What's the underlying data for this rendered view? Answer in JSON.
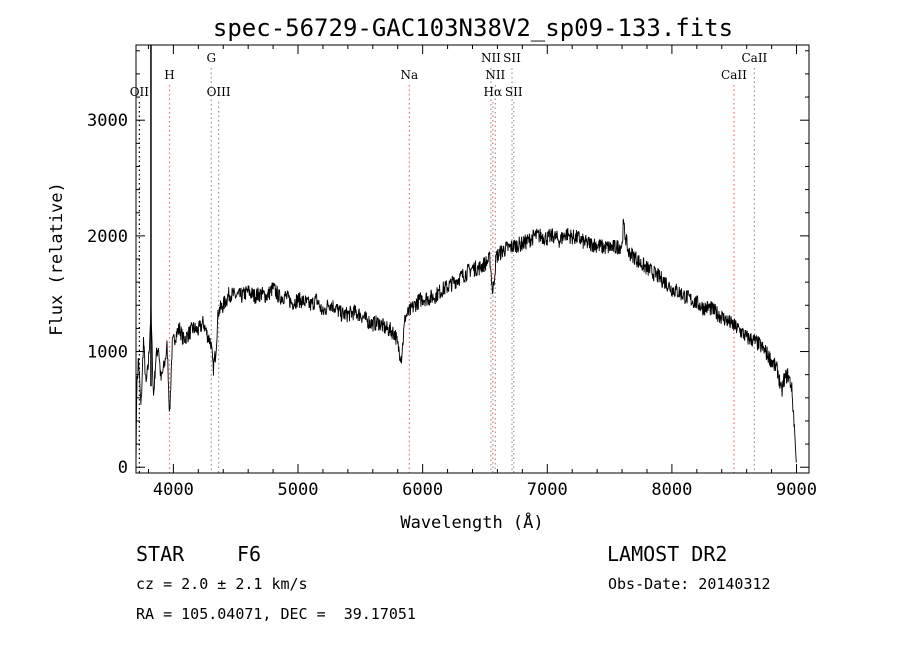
{
  "chart_data": {
    "type": "line",
    "title": "spec-56729-GAC103N38V2_sp09-133.fits",
    "xlabel": "Wavelength (Å)",
    "ylabel": "Flux (relative)",
    "xlim": [
      3700,
      9100
    ],
    "ylim": [
      -50,
      3650
    ],
    "xticks": [
      4000,
      5000,
      6000,
      7000,
      8000,
      9000
    ],
    "yticks": [
      0,
      1000,
      2000,
      3000
    ],
    "xtick_labels": [
      "4000",
      "5000",
      "6000",
      "7000",
      "8000",
      "9000"
    ],
    "ytick_labels": [
      "0",
      "1000",
      "2000",
      "3000"
    ],
    "grid": false,
    "spectrum_nodes": [
      [
        3700,
        0
      ],
      [
        3705,
        650
      ],
      [
        3720,
        950
      ],
      [
        3740,
        500
      ],
      [
        3760,
        1100
      ],
      [
        3780,
        700
      ],
      [
        3800,
        900
      ],
      [
        3820,
        1350
      ],
      [
        3840,
        600
      ],
      [
        3860,
        950
      ],
      [
        3880,
        1050
      ],
      [
        3900,
        750
      ],
      [
        3930,
        900
      ],
      [
        3950,
        1050
      ],
      [
        3970,
        450
      ],
      [
        3990,
        1050
      ],
      [
        4020,
        1150
      ],
      [
        4050,
        1200
      ],
      [
        4080,
        1100
      ],
      [
        4120,
        1150
      ],
      [
        4160,
        1200
      ],
      [
        4200,
        1180
      ],
      [
        4240,
        1250
      ],
      [
        4270,
        1150
      ],
      [
        4300,
        1080
      ],
      [
        4320,
        850
      ],
      [
        4340,
        1000
      ],
      [
        4360,
        1350
      ],
      [
        4400,
        1400
      ],
      [
        4450,
        1500
      ],
      [
        4500,
        1480
      ],
      [
        4550,
        1480
      ],
      [
        4600,
        1520
      ],
      [
        4650,
        1480
      ],
      [
        4700,
        1500
      ],
      [
        4750,
        1480
      ],
      [
        4800,
        1550
      ],
      [
        4850,
        1470
      ],
      [
        4900,
        1480
      ],
      [
        4950,
        1420
      ],
      [
        5000,
        1450
      ],
      [
        5050,
        1430
      ],
      [
        5100,
        1400
      ],
      [
        5150,
        1450
      ],
      [
        5200,
        1330
      ],
      [
        5250,
        1420
      ],
      [
        5300,
        1380
      ],
      [
        5350,
        1320
      ],
      [
        5400,
        1320
      ],
      [
        5450,
        1340
      ],
      [
        5500,
        1320
      ],
      [
        5550,
        1270
      ],
      [
        5600,
        1240
      ],
      [
        5650,
        1250
      ],
      [
        5700,
        1200
      ],
      [
        5750,
        1180
      ],
      [
        5780,
        1150
      ],
      [
        5800,
        1050
      ],
      [
        5830,
        950
      ],
      [
        5860,
        1300
      ],
      [
        5900,
        1350
      ],
      [
        5950,
        1420
      ],
      [
        6000,
        1460
      ],
      [
        6050,
        1460
      ],
      [
        6100,
        1480
      ],
      [
        6150,
        1530
      ],
      [
        6200,
        1560
      ],
      [
        6250,
        1600
      ],
      [
        6300,
        1640
      ],
      [
        6350,
        1680
      ],
      [
        6400,
        1720
      ],
      [
        6450,
        1720
      ],
      [
        6500,
        1760
      ],
      [
        6540,
        1800
      ],
      [
        6563,
        1500
      ],
      [
        6590,
        1820
      ],
      [
        6650,
        1880
      ],
      [
        6700,
        1900
      ],
      [
        6750,
        1920
      ],
      [
        6800,
        1930
      ],
      [
        6850,
        1960
      ],
      [
        6900,
        2000
      ],
      [
        6950,
        2000
      ],
      [
        7000,
        1980
      ],
      [
        7050,
        2000
      ],
      [
        7100,
        1960
      ],
      [
        7150,
        2020
      ],
      [
        7200,
        1990
      ],
      [
        7250,
        1980
      ],
      [
        7300,
        1940
      ],
      [
        7350,
        1930
      ],
      [
        7400,
        1920
      ],
      [
        7450,
        1900
      ],
      [
        7500,
        1900
      ],
      [
        7550,
        1900
      ],
      [
        7600,
        1920
      ],
      [
        7610,
        2100
      ],
      [
        7630,
        1980
      ],
      [
        7650,
        1860
      ],
      [
        7700,
        1820
      ],
      [
        7750,
        1760
      ],
      [
        7800,
        1720
      ],
      [
        7850,
        1680
      ],
      [
        7900,
        1640
      ],
      [
        7950,
        1600
      ],
      [
        8000,
        1540
      ],
      [
        8050,
        1520
      ],
      [
        8100,
        1480
      ],
      [
        8150,
        1450
      ],
      [
        8200,
        1420
      ],
      [
        8250,
        1380
      ],
      [
        8300,
        1380
      ],
      [
        8350,
        1340
      ],
      [
        8400,
        1300
      ],
      [
        8450,
        1260
      ],
      [
        8500,
        1220
      ],
      [
        8550,
        1180
      ],
      [
        8600,
        1120
      ],
      [
        8650,
        1100
      ],
      [
        8700,
        1060
      ],
      [
        8750,
        1000
      ],
      [
        8800,
        920
      ],
      [
        8850,
        830
      ],
      [
        8880,
        640
      ],
      [
        8900,
        760
      ],
      [
        8930,
        800
      ],
      [
        8960,
        700
      ],
      [
        8980,
        400
      ],
      [
        9000,
        0
      ]
    ],
    "noise_amplitude": 70,
    "spectral_lines": [
      {
        "label": "OII",
        "wavelength": 3727,
        "row": 3,
        "color": "#000000"
      },
      {
        "label": "H",
        "wavelength": 3969,
        "row": 2,
        "color": "#ff6a6a"
      },
      {
        "label": "G",
        "wavelength": 4304,
        "row": 1,
        "color": "#9a9a9a"
      },
      {
        "label": "OIII",
        "wavelength": 4363,
        "row": 3,
        "color": "#9a9a9a"
      },
      {
        "label": "Na",
        "wavelength": 5893,
        "row": 2,
        "color": "#ff6a6a"
      },
      {
        "label": "NII",
        "wavelength": 6548,
        "row": 1,
        "color": "#9a9a9a"
      },
      {
        "label": "NII",
        "wavelength": 6583,
        "row": 2,
        "color": "#9a9a9a"
      },
      {
        "label": "Hα",
        "wavelength": 6563,
        "row": 3,
        "color": "#ff6a6a"
      },
      {
        "label": "SII",
        "wavelength": 6717,
        "row": 1,
        "color": "#9a9a9a"
      },
      {
        "label": "SII",
        "wavelength": 6731,
        "row": 3,
        "color": "#9a9a9a"
      },
      {
        "label": "CaII",
        "wavelength": 8498,
        "row": 2,
        "color": "#ff6a6a"
      },
      {
        "label": "CaII",
        "wavelength": 8662,
        "row": 1,
        "color": "#9a9a9a"
      }
    ]
  },
  "info": {
    "object_class": "STAR",
    "subclass": "F6",
    "survey": "LAMOST DR2",
    "redshift_line": "cz = 2.0 ± 2.1 km/s",
    "obs_date": "Obs-Date: 20140312",
    "coords": "RA = 105.04071, DEC =  39.17051"
  }
}
